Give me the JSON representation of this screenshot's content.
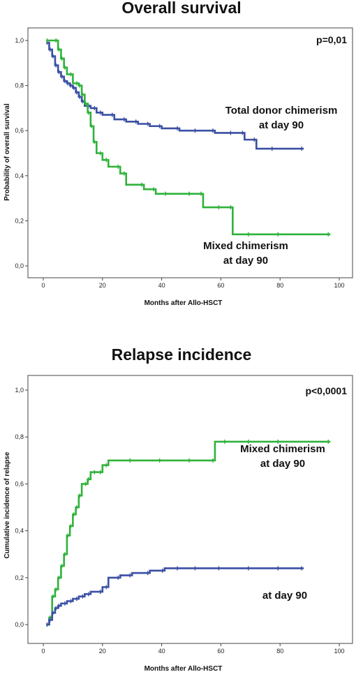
{
  "chart_data": [
    {
      "type": "line",
      "title": "Overall survival",
      "xlabel": "Months after Allo-HSCT",
      "ylabel": "Probability of overall survival",
      "xlim": [
        0,
        100
      ],
      "ylim": [
        0,
        1
      ],
      "xticks": [
        "0",
        "20",
        "40",
        "60",
        "80",
        "100"
      ],
      "yticks": [
        "0,0",
        "0,2",
        "0,4",
        "0,6",
        "0,8",
        "1,0"
      ],
      "grid": false,
      "pvalue": "p=0,01",
      "annotations": [
        {
          "lines": [
            "Total donor chimerism",
            "at day 90"
          ]
        },
        {
          "lines": [
            "Mixed chimerism",
            "at day 90"
          ]
        }
      ],
      "series": [
        {
          "color": "#3a4fa3",
          "x": [
            1,
            2,
            3,
            4,
            5,
            6,
            7,
            8,
            9,
            10,
            11,
            12,
            13,
            14,
            16,
            18,
            20,
            24,
            28,
            32,
            36,
            40,
            46,
            52,
            58,
            64,
            68,
            72,
            78,
            88
          ],
          "y": [
            0.99,
            0.96,
            0.93,
            0.89,
            0.86,
            0.84,
            0.82,
            0.81,
            0.8,
            0.79,
            0.77,
            0.75,
            0.73,
            0.71,
            0.7,
            0.68,
            0.67,
            0.65,
            0.64,
            0.63,
            0.62,
            0.61,
            0.6,
            0.6,
            0.59,
            0.59,
            0.56,
            0.52,
            0.52,
            0.52
          ]
        },
        {
          "color": "#2fb23a",
          "x": [
            1,
            2,
            5,
            6,
            7,
            8,
            10,
            12,
            13,
            14,
            15,
            16,
            17,
            18,
            20,
            22,
            26,
            28,
            34,
            38,
            42,
            50,
            54,
            60,
            64,
            70,
            80,
            97
          ],
          "y": [
            1.0,
            1.0,
            0.96,
            0.92,
            0.88,
            0.85,
            0.81,
            0.8,
            0.76,
            0.72,
            0.68,
            0.62,
            0.55,
            0.5,
            0.47,
            0.44,
            0.41,
            0.36,
            0.34,
            0.32,
            0.32,
            0.32,
            0.26,
            0.26,
            0.14,
            0.14,
            0.14,
            0.14
          ]
        }
      ]
    },
    {
      "type": "line",
      "title": "Relapse incidence",
      "xlabel": "Months after Allo-HSCT",
      "ylabel": "Cumulative incidence of relapse",
      "xlim": [
        0,
        100
      ],
      "ylim": [
        0,
        1
      ],
      "xticks": [
        "0",
        "20",
        "40",
        "60",
        "80",
        "100"
      ],
      "yticks": [
        "0,0",
        "0,2",
        "0,4",
        "0,6",
        "0,8",
        "1,0"
      ],
      "grid": false,
      "pvalue": "p<0,0001",
      "annotations": [
        {
          "lines": [
            "Mixed chimerism",
            "at day 90"
          ]
        },
        {
          "lines": [
            "at day 90"
          ]
        }
      ],
      "series": [
        {
          "color": "#2fb23a",
          "x": [
            1,
            2,
            3,
            4,
            5,
            6,
            7,
            8,
            9,
            10,
            11,
            12,
            13,
            15,
            16,
            18,
            20,
            22,
            30,
            40,
            50,
            58,
            62,
            70,
            80,
            97
          ],
          "y": [
            0.0,
            0.03,
            0.12,
            0.15,
            0.2,
            0.25,
            0.3,
            0.38,
            0.42,
            0.47,
            0.5,
            0.55,
            0.6,
            0.62,
            0.65,
            0.65,
            0.68,
            0.7,
            0.7,
            0.7,
            0.7,
            0.78,
            0.78,
            0.78,
            0.78,
            0.78
          ]
        },
        {
          "color": "#3a4fa3",
          "x": [
            1,
            2,
            3,
            4,
            5,
            6,
            8,
            10,
            12,
            14,
            16,
            20,
            22,
            26,
            30,
            36,
            41,
            46,
            52,
            60,
            70,
            80,
            88
          ],
          "y": [
            0.0,
            0.02,
            0.05,
            0.07,
            0.08,
            0.09,
            0.1,
            0.11,
            0.12,
            0.13,
            0.14,
            0.16,
            0.2,
            0.21,
            0.22,
            0.23,
            0.24,
            0.24,
            0.24,
            0.24,
            0.24,
            0.24,
            0.24
          ]
        }
      ]
    }
  ]
}
